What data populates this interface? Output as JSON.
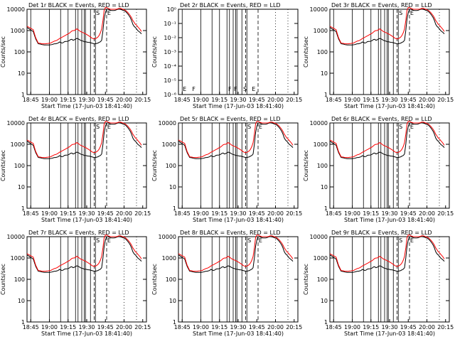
{
  "chart_data": [
    {
      "type": "line",
      "title": "Det 1r  BLACK = Events, RED = LLD",
      "xlabel": "Start Time (17-Jun-03 18:41:40)",
      "ylabel": "Counts/sec",
      "xticks": [
        "18:45",
        "19:00",
        "19:15",
        "19:30",
        "19:45",
        "20:00",
        "20:15"
      ],
      "yscale": "log",
      "ylim": [
        1,
        10000
      ],
      "yticks": [
        "1",
        "10",
        "100",
        "1000",
        "10000"
      ],
      "markers": [
        "S",
        "E"
      ],
      "series": [
        {
          "name": "BLACK",
          "color": "#000000",
          "x": [
            0,
            5,
            6,
            7,
            9,
            11,
            12,
            13,
            14,
            15,
            16,
            17,
            18,
            19,
            20,
            21,
            22,
            23,
            24,
            25,
            26,
            27,
            28,
            29,
            30,
            31,
            32,
            33,
            34,
            35,
            36,
            37,
            38,
            39,
            40,
            41,
            42,
            43,
            44,
            45,
            46,
            47,
            48,
            49,
            50,
            51,
            52,
            53,
            54,
            55,
            56,
            57,
            58,
            59,
            60,
            61,
            62,
            63,
            64,
            65,
            66,
            67,
            68,
            69,
            70,
            71,
            72,
            73,
            74,
            75,
            76,
            77,
            78,
            79,
            80,
            81,
            82,
            83,
            84,
            85,
            86,
            87,
            88,
            89,
            90,
            91,
            92
          ],
          "y": [
            1400,
            900,
            600,
            400,
            240,
            230,
            220,
            215,
            210,
            210,
            210,
            210,
            210,
            215,
            220,
            230,
            240,
            240,
            250,
            260,
            290,
            280,
            260,
            270,
            300,
            310,
            310,
            320,
            340,
            380,
            390,
            350,
            370,
            400,
            430,
            410,
            380,
            350,
            330,
            320,
            300,
            300,
            290,
            280,
            280,
            270,
            260,
            250,
            240,
            240,
            250,
            260,
            280,
            300,
            350,
            1000,
            3500,
            7000,
            10000,
            10000,
            9500,
            9000,
            8800,
            8700,
            8800,
            9000,
            9500,
            10000,
            10000,
            9800,
            9500,
            9000,
            8500,
            8000,
            7000,
            6000,
            5000,
            4000,
            3000,
            2000,
            1600,
            1400,
            1200,
            1000,
            900,
            800,
            700
          ]
        },
        {
          "name": "RED",
          "color": "#ff0000",
          "x": [
            0,
            5,
            6,
            7,
            9,
            11,
            12,
            13,
            14,
            15,
            16,
            17,
            18,
            19,
            20,
            21,
            22,
            23,
            24,
            25,
            26,
            27,
            28,
            29,
            30,
            31,
            32,
            33,
            34,
            35,
            36,
            37,
            38,
            39,
            40,
            41,
            42,
            43,
            44,
            45,
            46,
            47,
            48,
            49,
            50,
            51,
            52,
            53,
            54,
            55,
            56,
            57,
            58,
            59,
            60,
            61,
            62,
            63,
            64,
            65,
            66,
            67,
            68,
            69,
            70,
            71,
            72,
            73,
            74,
            75,
            76,
            77,
            78,
            79,
            80,
            81,
            82,
            83,
            84,
            85,
            86,
            87,
            88,
            89,
            90,
            91,
            92
          ],
          "y": [
            1600,
            1100,
            700,
            450,
            260,
            250,
            240,
            240,
            240,
            240,
            245,
            250,
            255,
            260,
            280,
            300,
            320,
            330,
            350,
            380,
            420,
            450,
            480,
            520,
            560,
            600,
            650,
            700,
            750,
            850,
            950,
            1000,
            1000,
            1100,
            1200,
            1100,
            1000,
            900,
            850,
            800,
            750,
            700,
            650,
            600,
            550,
            500,
            450,
            420,
            400,
            420,
            450,
            500,
            600,
            800,
            1200,
            3000,
            9000,
            12000,
            12000,
            11000,
            10500,
            10000,
            10000,
            10000,
            10000,
            10000,
            10000,
            10500,
            11000,
            11000,
            10500,
            10000,
            9500,
            9000,
            8000,
            7000,
            6000,
            5000,
            4000,
            3000,
            2500,
            2000,
            1800,
            1500,
            1300,
            1100,
            900
          ]
        }
      ]
    },
    {
      "type": "line",
      "title": "Det 2r  BLACK = Events, RED = LLD",
      "xlabel": "Start Time (17-Jun-03 18:41:40)",
      "ylabel": "Counts/sec",
      "xticks": [
        "18:45",
        "19:00",
        "19:15",
        "19:30",
        "19:45",
        "20:00",
        "20:15"
      ],
      "yscale": "log",
      "yticks": [
        "10⁻⁶",
        "10⁻⁵",
        "10⁻⁴",
        "10⁻³",
        "10⁻²",
        "10⁻¹",
        "10⁰"
      ],
      "markers": [
        "E",
        "F",
        "F",
        "F",
        "S",
        "E"
      ],
      "series": []
    },
    {
      "type": "line",
      "title": "Det 3r  BLACK = Events, RED = LLD",
      "xlabel": "Start Time (17-Jun-03 18:41:40)",
      "ylabel": "Counts/sec",
      "xticks": [
        "18:45",
        "19:00",
        "19:15",
        "19:30",
        "19:45",
        "20:00",
        "20:15"
      ],
      "yscale": "log",
      "ylim": [
        1,
        10000
      ],
      "yticks": [
        "1",
        "10",
        "100",
        "1000",
        "10000"
      ],
      "markers": [
        "S",
        "E"
      ],
      "series": "same-as-det1"
    },
    {
      "type": "line",
      "title": "Det 4r  BLACK = Events, RED = LLD",
      "xlabel": "Start Time (17-Jun-03 18:41:40)",
      "ylabel": "Counts/sec",
      "xticks": [
        "18:45",
        "19:00",
        "19:15",
        "19:30",
        "19:45",
        "20:00",
        "20:15"
      ],
      "yscale": "log",
      "ylim": [
        1,
        10000
      ],
      "yticks": [
        "1",
        "10",
        "100",
        "1000",
        "10000"
      ],
      "markers": [
        "S",
        "E"
      ],
      "series": "same-as-det1"
    },
    {
      "type": "line",
      "title": "Det 5r  BLACK = Events, RED = LLD",
      "xlabel": "Start Time (17-Jun-03 18:41:40)",
      "ylabel": "Counts/sec",
      "xticks": [
        "18:45",
        "19:00",
        "19:15",
        "19:30",
        "19:45",
        "20:00",
        "20:15"
      ],
      "yscale": "log",
      "ylim": [
        1,
        10000
      ],
      "yticks": [
        "1",
        "10",
        "100",
        "1000",
        "10000"
      ],
      "markers": [
        "S",
        "E"
      ],
      "series": "same-as-det1"
    },
    {
      "type": "line",
      "title": "Det 6r  BLACK = Events, RED = LLD",
      "xlabel": "Start Time (17-Jun-03 18:41:40)",
      "ylabel": "Counts/sec",
      "xticks": [
        "18:45",
        "19:00",
        "19:15",
        "19:30",
        "19:45",
        "20:00",
        "20:15"
      ],
      "yscale": "log",
      "ylim": [
        1,
        10000
      ],
      "yticks": [
        "1",
        "10",
        "100",
        "1000",
        "10000"
      ],
      "markers": [
        "S",
        "E"
      ],
      "series": "same-as-det1"
    },
    {
      "type": "line",
      "title": "Det 7r  BLACK = Events, RED = LLD",
      "xlabel": "Start Time (17-Jun-03 18:41:40)",
      "ylabel": "Counts/sec",
      "xticks": [
        "18:45",
        "19:00",
        "19:15",
        "19:30",
        "19:45",
        "20:00",
        "20:15"
      ],
      "yscale": "log",
      "ylim": [
        1,
        10000
      ],
      "yticks": [
        "1",
        "10",
        "100",
        "1000",
        "10000"
      ],
      "markers": [
        "S",
        "E"
      ],
      "series": "same-as-det1"
    },
    {
      "type": "line",
      "title": "Det 8r  BLACK = Events, RED = LLD",
      "xlabel": "Start Time (17-Jun-03 18:41:40)",
      "ylabel": "Counts/sec",
      "xticks": [
        "18:45",
        "19:00",
        "19:15",
        "19:30",
        "19:45",
        "20:00",
        "20:15"
      ],
      "yscale": "log",
      "ylim": [
        1,
        10000
      ],
      "yticks": [
        "1",
        "10",
        "100",
        "1000",
        "10000"
      ],
      "markers": [
        "S",
        "E"
      ],
      "series": "same-as-det1"
    },
    {
      "type": "line",
      "title": "Det 9r  BLACK = Events, RED = LLD",
      "xlabel": "Start Time (17-Jun-03 18:41:40)",
      "ylabel": "Counts/sec",
      "xticks": [
        "18:45",
        "19:00",
        "19:15",
        "19:30",
        "19:45",
        "20:00",
        "20:15"
      ],
      "yscale": "log",
      "ylim": [
        1,
        10000
      ],
      "yticks": [
        "1",
        "10",
        "100",
        "1000",
        "10000"
      ],
      "markers": [
        "S",
        "E"
      ],
      "series": "same-as-det1"
    }
  ]
}
